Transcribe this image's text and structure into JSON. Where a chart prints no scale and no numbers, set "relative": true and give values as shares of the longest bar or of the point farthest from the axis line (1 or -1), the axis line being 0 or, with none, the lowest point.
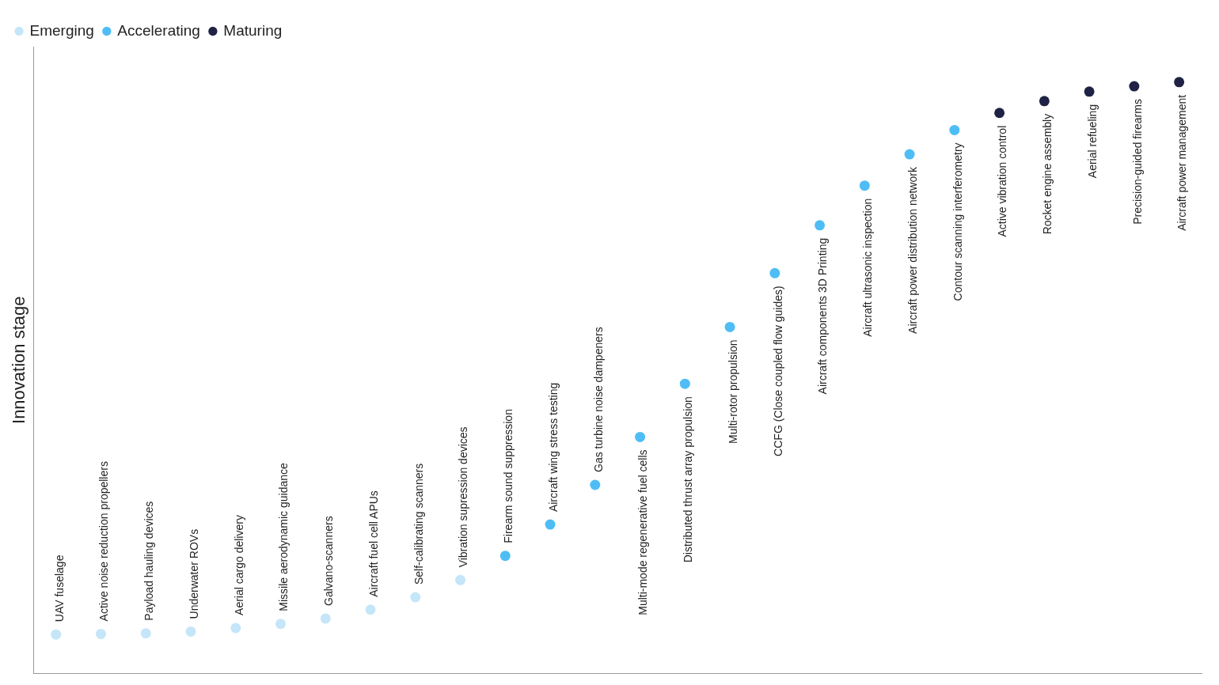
{
  "chart_data": {
    "type": "scatter",
    "ylabel": "Innovation stage",
    "relative": true,
    "legend": "top left",
    "grid": false,
    "marker": "circle",
    "categories": [
      "UAV fuselage",
      "Active noise reduction propellers",
      "Payload hauling devices",
      "Underwater ROVs",
      "Aerial cargo delivery",
      "Missile aerodynamic guidance",
      "Galvano-scanners",
      "Aircraft fuel cell APUs",
      "Self-calibrating scanners",
      "Vibration supression devices",
      "Firearm sound suppression",
      "Aircraft wing stress testing",
      "Gas turbine noise dampeners",
      "Multi-mode regenerative fuel cells",
      "Distributed thrust array propulsion",
      "Multi-rotor propulsion",
      "CCFG (Close coupled flow guides)",
      "Aircraft components 3D Printing",
      "Aircraft ultrasonic inspection",
      "Aircraft power distribution network",
      "Contour scanning interferometry",
      "Active vibration control",
      "Rocket engine assembly",
      "Aerial refueling",
      "Precision-guided firearms",
      "Aircraft power management"
    ],
    "series": [
      {
        "name": "Emerging",
        "color": "#c5e6f8",
        "values": [
          0.066,
          0.067,
          0.068,
          0.071,
          0.077,
          0.084,
          0.093,
          0.108,
          0.129,
          0.158,
          null,
          null,
          null,
          null,
          null,
          null,
          null,
          null,
          null,
          null,
          null,
          null,
          null,
          null,
          null,
          null
        ]
      },
      {
        "name": "Accelerating",
        "color": "#4fbdf5",
        "values": [
          null,
          null,
          null,
          null,
          null,
          null,
          null,
          null,
          null,
          null,
          0.199,
          0.252,
          0.319,
          0.4,
          0.49,
          0.586,
          0.677,
          0.758,
          0.825,
          0.878,
          0.919,
          null,
          null,
          null,
          null,
          null
        ]
      },
      {
        "name": "Maturing",
        "color": "#1f2244",
        "values": [
          null,
          null,
          null,
          null,
          null,
          null,
          null,
          null,
          null,
          null,
          null,
          null,
          null,
          null,
          null,
          null,
          null,
          null,
          null,
          null,
          null,
          0.948,
          0.968,
          0.984,
          0.993,
          1
        ]
      }
    ]
  }
}
